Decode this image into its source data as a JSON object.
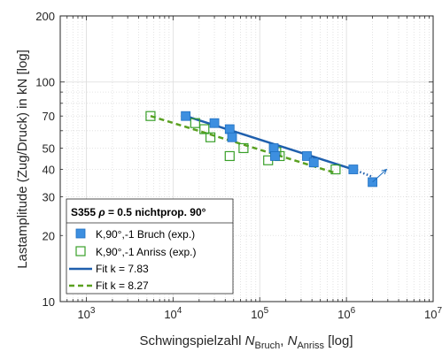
{
  "chart_data": {
    "type": "scatter",
    "title": "",
    "xlabel": {
      "prefix": "Schwingspielzahl ",
      "sym1": "N",
      "sub1": "Bruch",
      "sep": ", ",
      "sym2": "N",
      "sub2": "Anriss",
      "suffix": " [log]"
    },
    "ylabel": "Lastamplitude (Zug/Druck) in kN [log]",
    "x_scale": "log",
    "y_scale": "log",
    "xlim": [
      500,
      10000000
    ],
    "ylim": [
      10,
      200
    ],
    "grid": true,
    "x_ticks": [
      {
        "value": 1000,
        "base": "10",
        "exp": "3"
      },
      {
        "value": 10000,
        "base": "10",
        "exp": "4"
      },
      {
        "value": 100000,
        "base": "10",
        "exp": "5"
      },
      {
        "value": 1000000,
        "base": "10",
        "exp": "6"
      },
      {
        "value": 10000000,
        "base": "10",
        "exp": "7"
      }
    ],
    "y_ticks": [
      {
        "value": 10,
        "label": "10"
      },
      {
        "value": 20,
        "label": "20"
      },
      {
        "value": 30,
        "label": "30"
      },
      {
        "value": 40,
        "label": "40"
      },
      {
        "value": 50,
        "label": "50"
      },
      {
        "value": 70,
        "label": "70"
      },
      {
        "value": 100,
        "label": "100"
      },
      {
        "value": 200,
        "label": "200"
      }
    ],
    "legend": {
      "placement": "bottom-left",
      "title": {
        "prefix": "S355 ",
        "rho": "ρ",
        "suffix": " = 0.5 nichtprop. 90°"
      },
      "entries": [
        {
          "label": "K,90°,-1 Bruch (exp.)"
        },
        {
          "label": "K,90°,-1 Anriss (exp.)"
        },
        {
          "label": "Fit k = 7.83"
        },
        {
          "label": "Fit k = 8.27"
        }
      ]
    },
    "series": [
      {
        "kind": "scatter-filled",
        "color": "#3d8fe0",
        "edge": "#1f6fc0",
        "points": [
          [
            14000,
            70
          ],
          [
            30000,
            65
          ],
          [
            45000,
            61
          ],
          [
            48000,
            56
          ],
          [
            145000,
            50
          ],
          [
            150000,
            46
          ],
          [
            350000,
            46
          ],
          [
            420000,
            43
          ],
          [
            1200000,
            40
          ],
          [
            2000000,
            35
          ]
        ]
      },
      {
        "kind": "scatter-open",
        "color": "#3aa02a",
        "points": [
          [
            5500,
            70
          ],
          [
            18000,
            65
          ],
          [
            23000,
            61
          ],
          [
            27000,
            56
          ],
          [
            45000,
            46
          ],
          [
            65000,
            50
          ],
          [
            125000,
            44
          ],
          [
            155000,
            48
          ],
          [
            170000,
            46
          ],
          [
            750000,
            40
          ]
        ]
      },
      {
        "kind": "fit-line",
        "color": "#1f5fad",
        "solid": [
          [
            14000,
            70
          ],
          [
            1200000,
            40
          ]
        ],
        "dotted": [
          [
            1200000,
            40
          ],
          [
            2000000,
            37
          ]
        ]
      },
      {
        "kind": "fit-dashed",
        "color": "#5aa020",
        "points": [
          [
            5500,
            70
          ],
          [
            750000,
            38.5
          ]
        ]
      },
      {
        "kind": "runout-arrow",
        "color": "#1f6fc0",
        "from": [
          2000000,
          35
        ],
        "to": [
          2900000,
          40
        ]
      }
    ]
  }
}
